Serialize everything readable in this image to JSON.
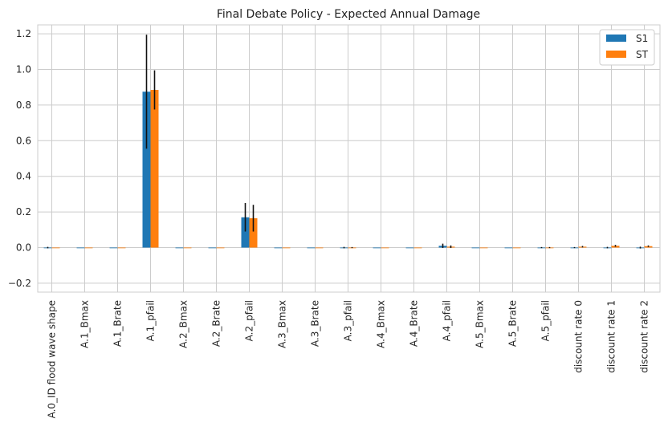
{
  "chart_data": {
    "type": "bar",
    "title": "Final Debate Policy - Expected Annual Damage",
    "xlabel": "",
    "ylabel": "",
    "ylim": [
      -0.25,
      1.25
    ],
    "yticks": [
      -0.2,
      0.0,
      0.2,
      0.4,
      0.6,
      0.8,
      1.0,
      1.2
    ],
    "ytick_labels": [
      "−0.2",
      "0.0",
      "0.2",
      "0.4",
      "0.6",
      "0.8",
      "1.0",
      "1.2"
    ],
    "grid": true,
    "legend_position": "top-right",
    "categories": [
      "A.0_ID flood wave shape",
      "A.1_Bmax",
      "A.1_Brate",
      "A.1_pfail",
      "A.2_Bmax",
      "A.2_Brate",
      "A.2_pfail",
      "A.3_Bmax",
      "A.3_Brate",
      "A.3_pfail",
      "A.4_Bmax",
      "A.4_Brate",
      "A.4_pfail",
      "A.5_Bmax",
      "A.5_Brate",
      "A.5_pfail",
      "discount rate 0",
      "discount rate 1",
      "discount rate 2"
    ],
    "series": [
      {
        "name": "S1",
        "color": "#1f77b4",
        "values": [
          0.0,
          0.0,
          0.0,
          0.875,
          0.0,
          0.0,
          0.17,
          0.0,
          0.0,
          0.0,
          0.0,
          0.0,
          0.01,
          0.0,
          0.0,
          0.0,
          0.0,
          0.0,
          0.0
        ],
        "errors": [
          0.004,
          0.0,
          0.0,
          0.32,
          0.0,
          0.0,
          0.08,
          0.0,
          0.0,
          0.004,
          0.0,
          0.0,
          0.012,
          0.0,
          0.0,
          0.003,
          0.003,
          0.004,
          0.005
        ]
      },
      {
        "name": "ST",
        "color": "#ff7f0e",
        "values": [
          0.0,
          0.0,
          0.0,
          0.885,
          0.0,
          0.0,
          0.165,
          0.0,
          0.0,
          0.0,
          0.0,
          0.0,
          0.005,
          0.0,
          0.0,
          0.0,
          0.005,
          0.01,
          0.008
        ],
        "errors": [
          0.0,
          0.0,
          0.0,
          0.11,
          0.0,
          0.0,
          0.075,
          0.0,
          0.0,
          0.003,
          0.0,
          0.0,
          0.007,
          0.0,
          0.0,
          0.003,
          0.004,
          0.005,
          0.004
        ]
      }
    ]
  }
}
